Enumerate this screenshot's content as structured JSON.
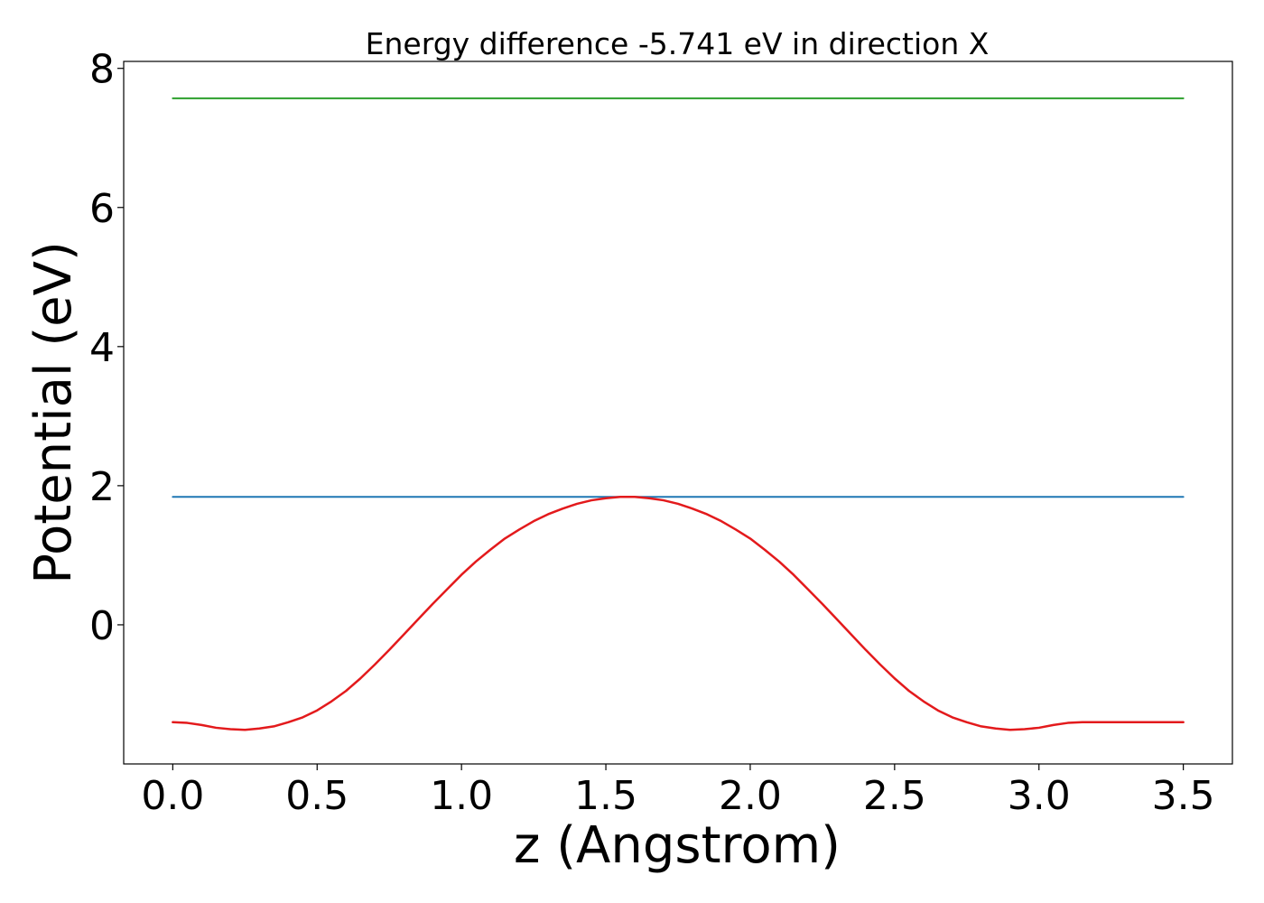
{
  "chart_data": {
    "type": "line",
    "title": "Energy difference -5.741 eV in direction X",
    "xlabel": "z (Angstrom)",
    "ylabel": "Potential (eV)",
    "xlim": [
      -0.17,
      3.67
    ],
    "ylim": [
      -2.0,
      8.1
    ],
    "x_ticks": [
      0.0,
      0.5,
      1.0,
      1.5,
      2.0,
      2.5,
      3.0,
      3.5
    ],
    "x_tick_labels": [
      "0.0",
      "0.5",
      "1.0",
      "1.5",
      "2.0",
      "2.5",
      "3.0",
      "3.5"
    ],
    "y_ticks": [
      0,
      2,
      4,
      6,
      8
    ],
    "y_tick_labels": [
      "0",
      "2",
      "4",
      "6",
      "8"
    ],
    "grid": false,
    "legend": "none",
    "series": [
      {
        "color": "#2ca02c",
        "x": [
          0.0,
          3.5
        ],
        "y": [
          7.57,
          7.57
        ]
      },
      {
        "color": "#1f77b4",
        "x": [
          0.0,
          3.5
        ],
        "y": [
          1.84,
          1.84
        ]
      },
      {
        "color": "#e31a1c",
        "x": [
          0.0,
          0.05,
          0.1,
          0.15,
          0.2,
          0.25,
          0.3,
          0.35,
          0.4,
          0.45,
          0.5,
          0.55,
          0.6,
          0.65,
          0.7,
          0.75,
          0.8,
          0.85,
          0.9,
          0.95,
          1.0,
          1.05,
          1.1,
          1.15,
          1.2,
          1.25,
          1.3,
          1.35,
          1.4,
          1.45,
          1.5,
          1.55,
          1.6,
          1.65,
          1.7,
          1.75,
          1.8,
          1.85,
          1.9,
          1.95,
          2.0,
          2.05,
          2.1,
          2.15,
          2.2,
          2.25,
          2.3,
          2.35,
          2.4,
          2.45,
          2.5,
          2.55,
          2.6,
          2.65,
          2.7,
          2.75,
          2.8,
          2.85,
          2.9,
          2.95,
          3.0,
          3.05,
          3.1,
          3.15,
          3.2,
          3.25,
          3.3,
          3.35,
          3.4,
          3.45,
          3.5
        ],
        "y": [
          -1.4,
          -1.41,
          -1.44,
          -1.48,
          -1.5,
          -1.51,
          -1.49,
          -1.46,
          -1.4,
          -1.33,
          -1.23,
          -1.1,
          -0.95,
          -0.77,
          -0.57,
          -0.36,
          -0.14,
          0.08,
          0.3,
          0.51,
          0.72,
          0.91,
          1.08,
          1.24,
          1.37,
          1.49,
          1.59,
          1.67,
          1.74,
          1.79,
          1.82,
          1.84,
          1.84,
          1.82,
          1.79,
          1.74,
          1.67,
          1.59,
          1.49,
          1.37,
          1.24,
          1.08,
          0.91,
          0.72,
          0.51,
          0.3,
          0.08,
          -0.14,
          -0.36,
          -0.57,
          -0.77,
          -0.95,
          -1.1,
          -1.23,
          -1.33,
          -1.4,
          -1.46,
          -1.49,
          -1.51,
          -1.5,
          -1.48,
          -1.44,
          -1.41,
          -1.4,
          -1.4,
          -1.4,
          -1.4,
          -1.4,
          -1.4,
          -1.4,
          -1.4
        ]
      }
    ]
  }
}
